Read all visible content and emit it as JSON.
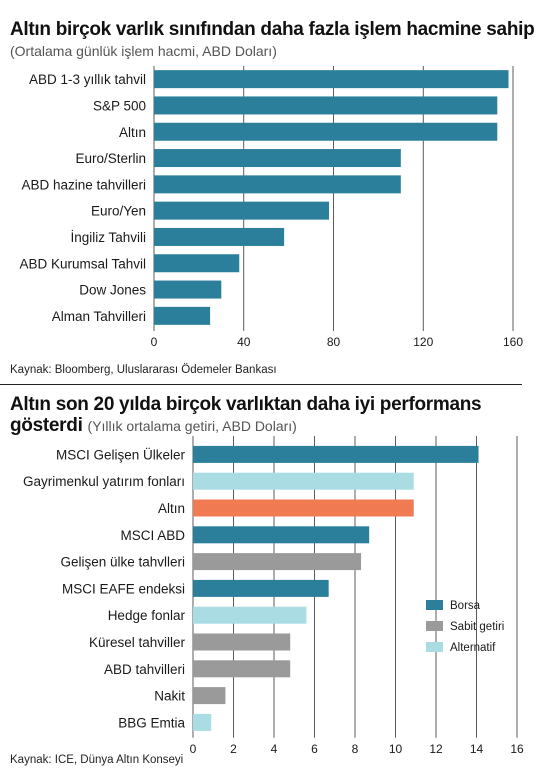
{
  "chart_data": [
    {
      "type": "bar",
      "orientation": "horizontal",
      "title": "Altın birçok varlık sınıfından daha fazla işlem hacmine sahip",
      "subtitle": "(Ortalama günlük işlem hacmi, ABD Doları)",
      "categories": [
        "ABD 1-3 yıllık tahvil",
        "S&P 500",
        "Altın",
        "Euro/Sterlin",
        "ABD hazine tahvilleri",
        "Euro/Yen",
        "İngiliz Tahvili",
        "ABD Kurumsal Tahvil",
        "Dow Jones",
        "Alman Tahvilleri"
      ],
      "values": [
        158,
        153,
        153,
        110,
        110,
        78,
        58,
        38,
        30,
        25
      ],
      "xlim": [
        0,
        160
      ],
      "xticks": [
        "0",
        "40",
        "80",
        "120",
        "160"
      ],
      "grid": true,
      "color": "#2b7f9b",
      "source": "Kaynak: Bloomberg, Uluslararası Ödemeler Bankası"
    },
    {
      "type": "bar",
      "orientation": "horizontal",
      "title": "Altın son 20 yılda birçok varlıktan daha iyi performans",
      "title_line2": "gösterdi",
      "subtitle": "(Yıllık ortalama getiri, ABD Doları)",
      "categories": [
        "MSCI Gelişen Ülkeler",
        "Gayrimenkul yatırım fonları",
        "Altın",
        "MSCI ABD",
        "Gelişen ülke tahvlleri",
        "MSCI EAFE endeksi",
        "Hedge fonlar",
        "Küresel tahviller",
        "ABD tahvilleri",
        "Nakit",
        "BBG Emtia"
      ],
      "values": [
        14.1,
        10.9,
        10.9,
        8.7,
        8.3,
        6.7,
        5.6,
        4.8,
        4.8,
        1.6,
        0.9
      ],
      "groups": [
        "Borsa",
        "Alternatif",
        "Altın",
        "Borsa",
        "Sabit getiri",
        "Borsa",
        "Alternatif",
        "Sabit getiri",
        "Sabit getiri",
        "Sabit getiri",
        "Alternatif"
      ],
      "xlim": [
        0,
        16
      ],
      "xticks": [
        "0",
        "2",
        "4",
        "6",
        "8",
        "10",
        "12",
        "14",
        "16"
      ],
      "grid": true,
      "legend": {
        "placement": "right",
        "items": [
          {
            "label": "Borsa",
            "color": "#2b7f9b"
          },
          {
            "label": "Sabit getiri",
            "color": "#9a9a9a"
          },
          {
            "label": "Alternatif",
            "color": "#a9dde3"
          }
        ]
      },
      "group_colors": {
        "Borsa": "#2b7f9b",
        "Sabit getiri": "#9a9a9a",
        "Alternatif": "#a9dde3",
        "Altın": "#f07a52"
      },
      "source": "Kaynak: ICE, Dünya Altın Konseyi"
    }
  ]
}
